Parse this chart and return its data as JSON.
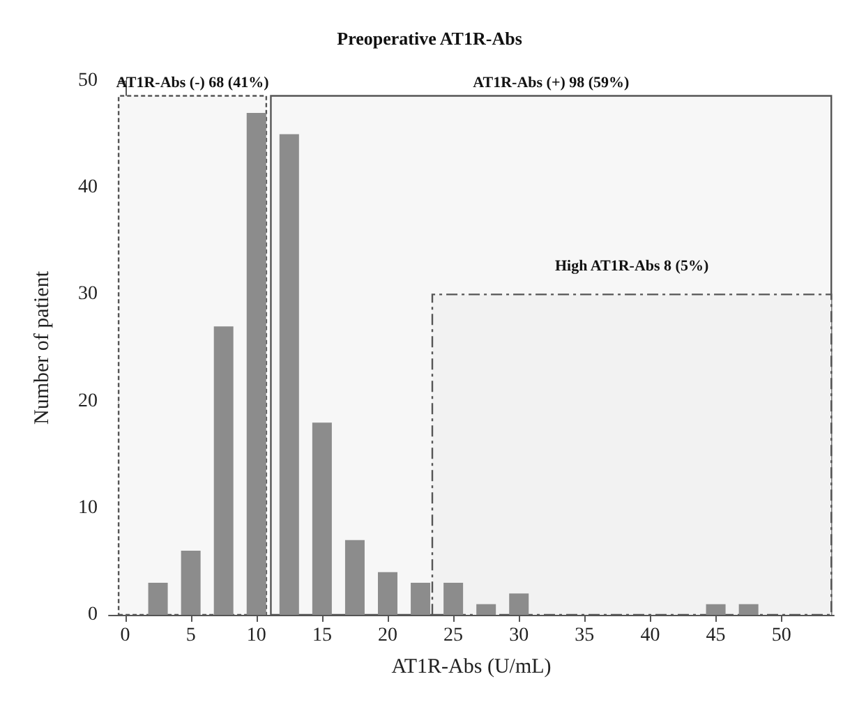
{
  "chart_data": {
    "type": "bar",
    "title": "Preoperative AT1R-Abs",
    "xlabel": "AT1R-Abs (U/mL)",
    "ylabel": "Number of patient",
    "x": [
      2.5,
      5,
      7.5,
      10,
      12.5,
      15,
      17.5,
      20,
      22.5,
      25,
      27.5,
      30,
      32.5,
      35,
      37.5,
      40,
      42.5,
      45,
      47.5
    ],
    "values": [
      3,
      6,
      27,
      47,
      45,
      18,
      7,
      4,
      3,
      3,
      1,
      2,
      0,
      0,
      0,
      0,
      0,
      1,
      1
    ],
    "color": "#8c8c8c",
    "xlim": [
      -1.25,
      54
    ],
    "xticks": [
      0,
      5,
      10,
      15,
      20,
      25,
      30,
      35,
      40,
      45,
      50
    ],
    "ylim": [
      0,
      50
    ],
    "yticks": [
      0,
      10,
      20,
      30,
      40,
      50
    ],
    "grid": false,
    "bands": [
      {
        "axis": "x",
        "from": -0.5,
        "to": 10.75,
        "label": "AT1R-Abs (-) 68 (41%)",
        "color": "#f7f7f7"
      },
      {
        "axis": "x",
        "from": 11.1,
        "to": 53.8,
        "label": "AT1R-Abs (+) 98 (59%)",
        "color": "#f7f7f7"
      },
      {
        "axis": "x",
        "from": 23.4,
        "to": 53.8,
        "label": "High AT1R-Abs 8 (5%)",
        "color": "#f2f2f2"
      }
    ]
  }
}
